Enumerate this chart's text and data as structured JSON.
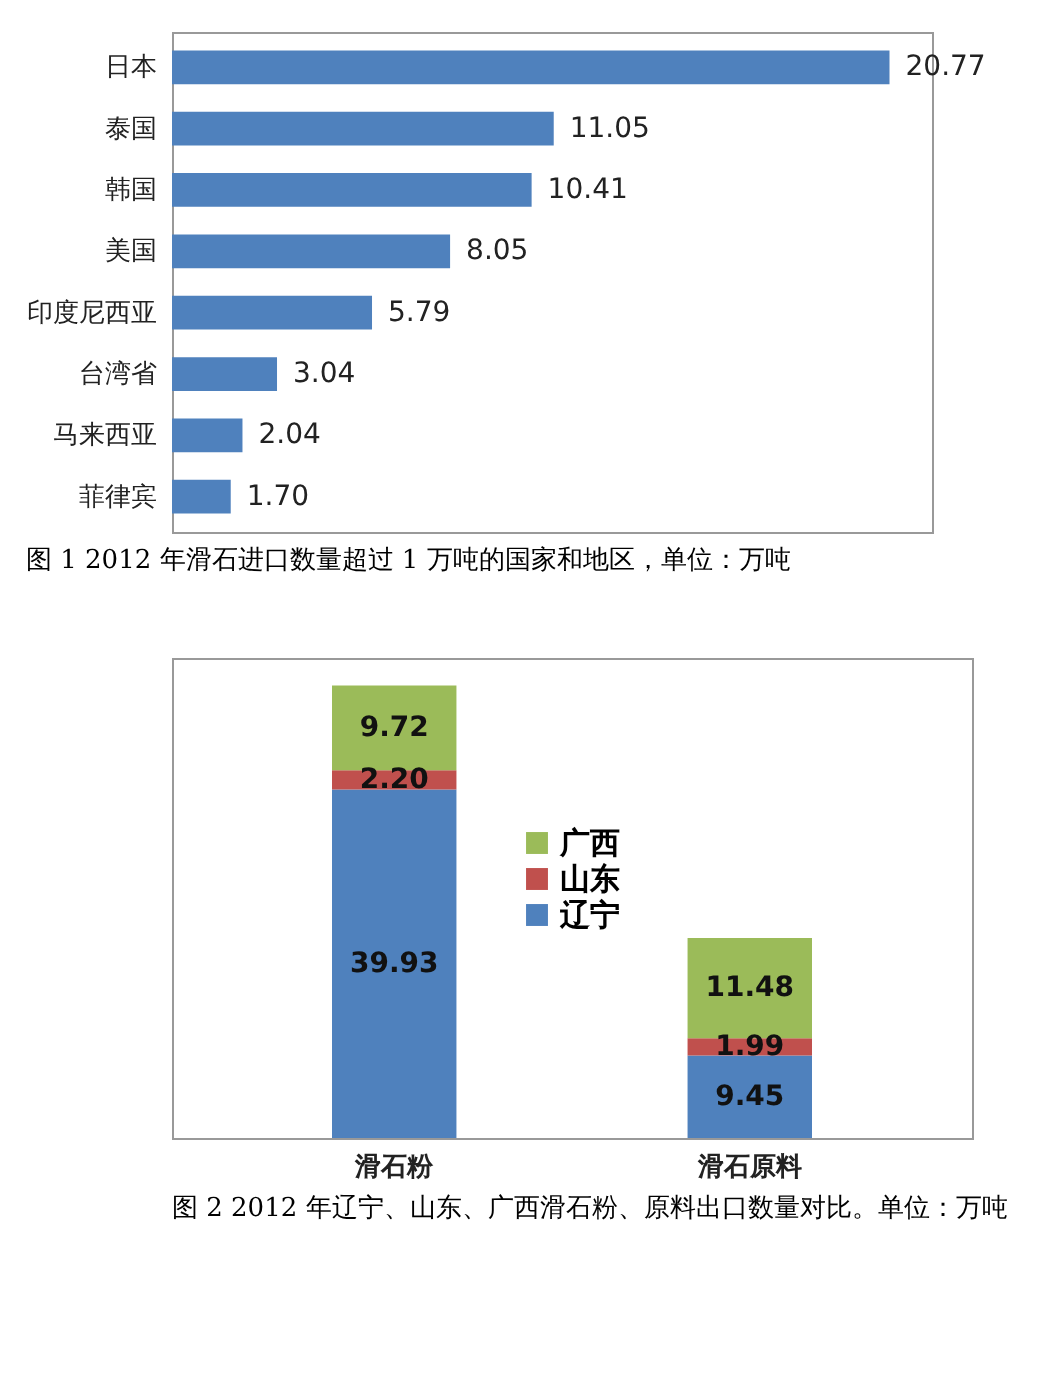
{
  "chart_data": [
    {
      "type": "bar",
      "orientation": "horizontal",
      "categories": [
        "日本",
        "泰国",
        "韩国",
        "美国",
        "印度尼西亚",
        "台湾省",
        "马来西亚",
        "菲律宾"
      ],
      "values": [
        20.77,
        11.05,
        10.41,
        8.05,
        5.79,
        3.04,
        2.04,
        1.7
      ],
      "value_labels": [
        "20.77",
        "11.05",
        "10.41",
        "8.05",
        "5.79",
        "3.04",
        "2.04",
        "1.70"
      ],
      "color": "#4f81bd",
      "tick_labels": "y",
      "annotations": [
        "图 1  2012 年滑石进口数量超过 1 万吨的国家和地区，单位：万吨"
      ]
    },
    {
      "type": "bar",
      "stacked": true,
      "categories": [
        "滑石粉",
        "滑石原料"
      ],
      "tick_labels": "x",
      "legend": "center",
      "series": [
        {
          "name": "辽宁",
          "color": "#4f81bd",
          "values": [
            39.93,
            9.45
          ],
          "value_labels": [
            "39.93",
            "9.45"
          ]
        },
        {
          "name": "山东",
          "color": "#c0504d",
          "values": [
            2.2,
            1.99
          ],
          "value_labels": [
            "2.20",
            "1.99"
          ]
        },
        {
          "name": "广西",
          "color": "#9bbb59",
          "values": [
            9.72,
            11.48
          ],
          "value_labels": [
            "9.72",
            "11.48"
          ]
        }
      ],
      "annotations": [
        "图 2   2012 年辽宁、山东、广西滑石粉、原料出口数量对比。单位：万吨"
      ]
    }
  ]
}
